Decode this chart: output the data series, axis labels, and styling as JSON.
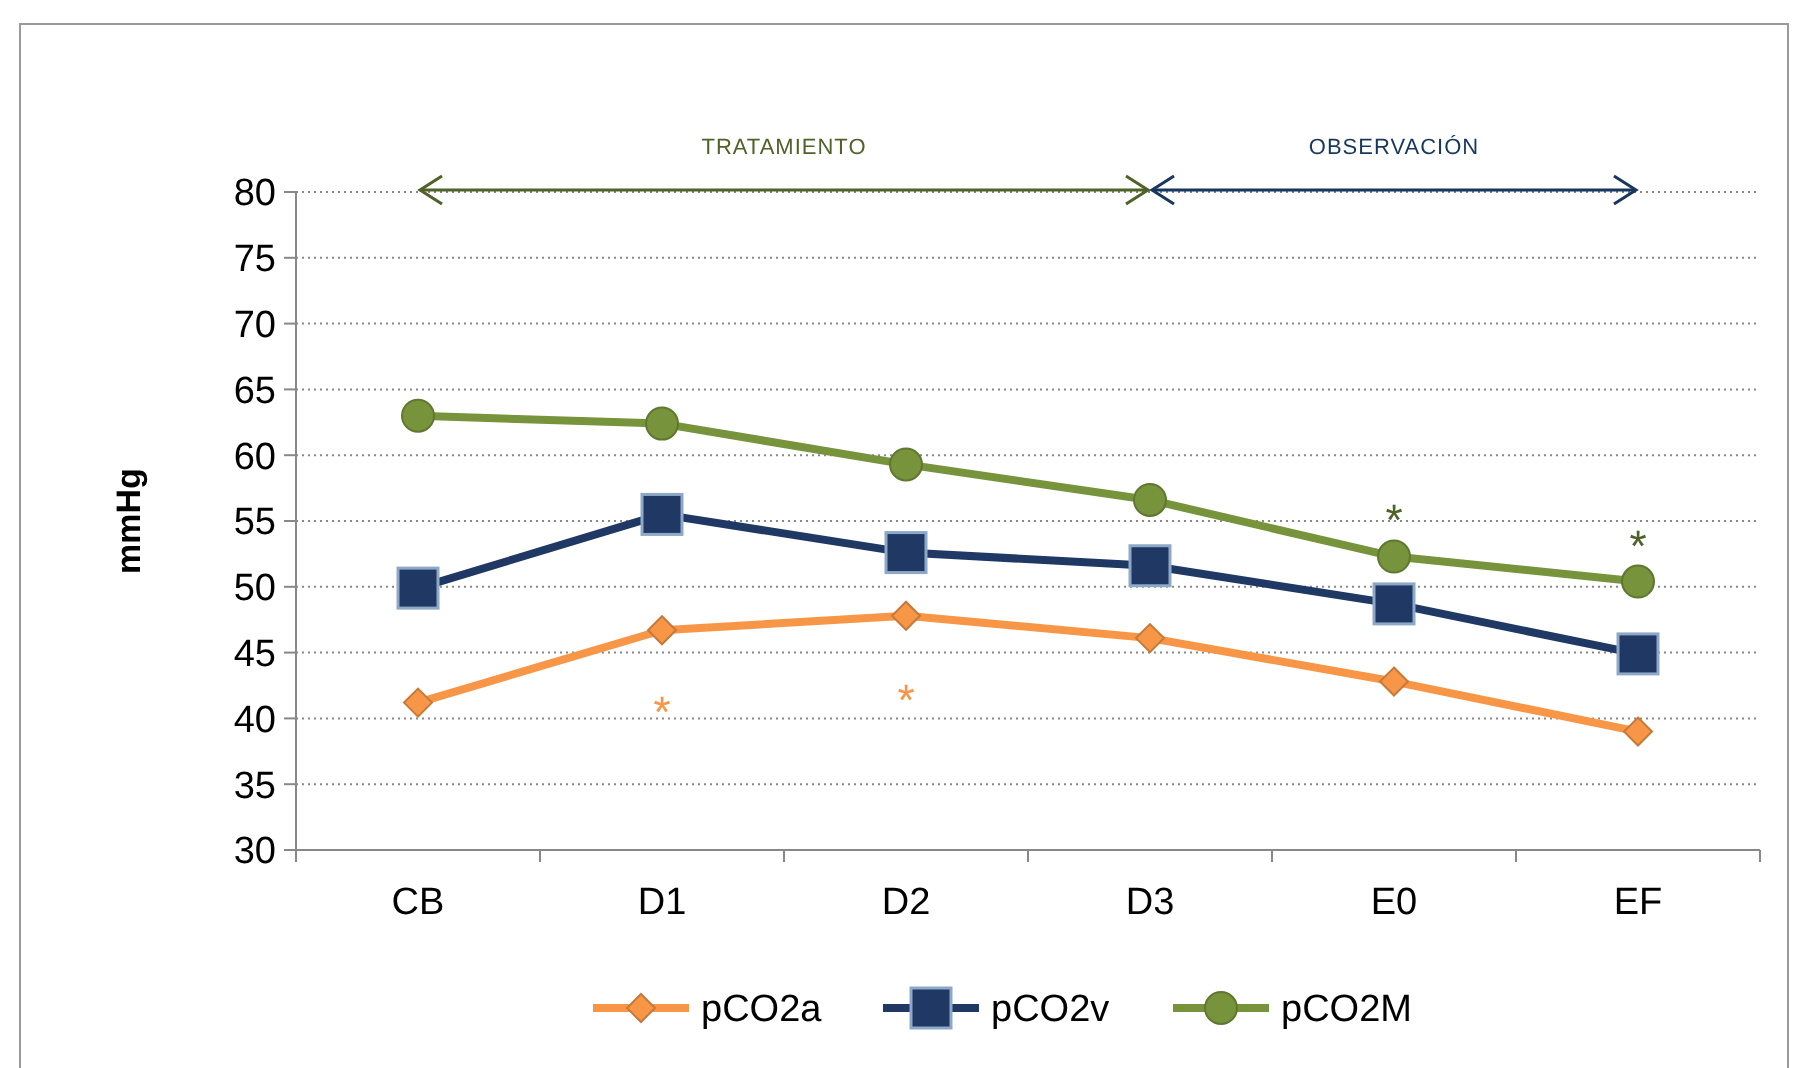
{
  "chart_data": {
    "type": "line",
    "ylabel": "mmHg",
    "categories": [
      "CB",
      "D1",
      "D2",
      "D3",
      "E0",
      "EF"
    ],
    "series": [
      {
        "name": "pCO2a",
        "color": "#f79646",
        "marker": "diamond",
        "values": [
          41.2,
          46.7,
          47.8,
          46.1,
          42.8,
          39.0
        ]
      },
      {
        "name": "pCO2v",
        "color": "#1f3864",
        "marker": "square",
        "values": [
          49.9,
          55.5,
          52.6,
          51.6,
          48.7,
          44.9
        ]
      },
      {
        "name": "pCO2M",
        "color": "#77933c",
        "marker": "circle",
        "values": [
          63.0,
          62.4,
          59.3,
          56.6,
          52.3,
          50.4
        ]
      }
    ],
    "ylim": [
      30,
      80
    ],
    "yticks": [
      30,
      35,
      40,
      45,
      50,
      55,
      60,
      65,
      70,
      75,
      80
    ],
    "grid": "y",
    "legend": "bottom",
    "line_style": "solid",
    "annotations": [
      "TRATAMIENTO",
      "OBSERVACIÓN",
      "*",
      "*",
      "*",
      "*"
    ]
  }
}
